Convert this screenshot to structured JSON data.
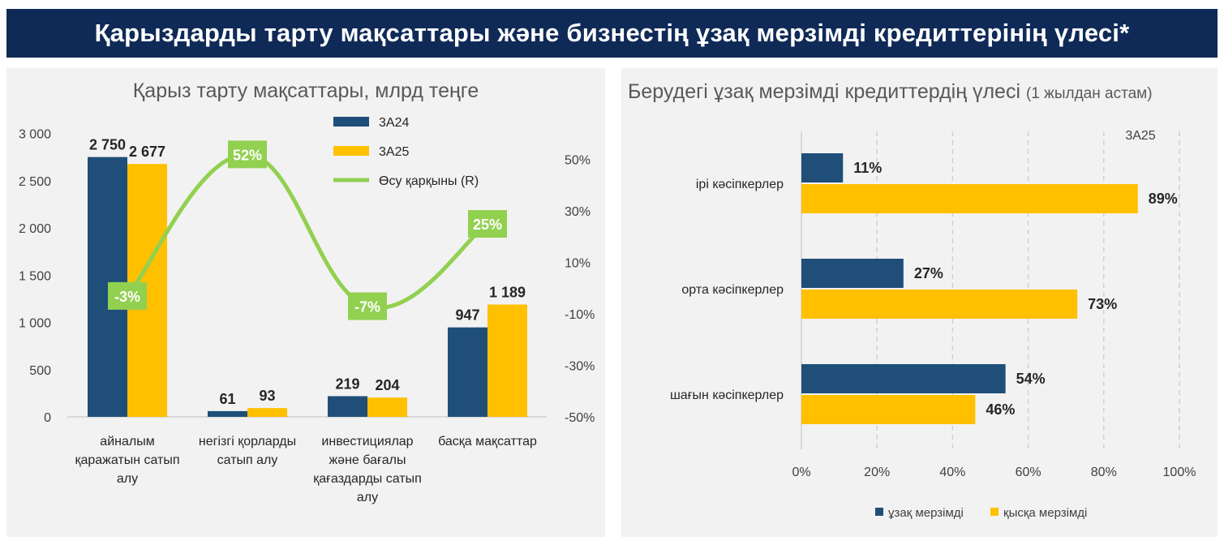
{
  "header": {
    "title": "Қарыздарды тарту мақсаттары және бизнестің ұзақ мерзімді кредиттерінің үлесі*"
  },
  "colors": {
    "navy": "#1f4e79",
    "gold": "#ffc000",
    "green": "#92d050",
    "header_bg": "#0f2a57"
  },
  "chart_data": [
    {
      "type": "bar",
      "title": "Қарыз тарту мақсаттары, млрд теңге",
      "categories": [
        [
          "айналым",
          "қаражатын сатып",
          "алу"
        ],
        [
          "негізгі қорларды",
          "сатып алу"
        ],
        [
          "инвестициялар",
          "және бағалы",
          "қағаздарды сатып",
          "алу"
        ],
        [
          "басқа мақсаттар"
        ]
      ],
      "series": [
        {
          "name": "3А24",
          "values": [
            2750,
            61,
            219,
            947
          ],
          "labels": [
            "2 750",
            "61",
            "219",
            "947"
          ],
          "color": "#1f4e79"
        },
        {
          "name": "3А25",
          "values": [
            2677,
            93,
            204,
            1189
          ],
          "labels": [
            "2 677",
            "93",
            "204",
            "1 189"
          ],
          "color": "#ffc000"
        }
      ],
      "line_series": {
        "name": "Өсу қарқыны (R)",
        "values": [
          -3,
          52,
          -7,
          25
        ],
        "labels": [
          "-3%",
          "52%",
          "-7%",
          "25%"
        ],
        "color": "#92d050",
        "axis": "right"
      },
      "ylim": [
        0,
        3000
      ],
      "yticks": [
        "0",
        "500",
        "1 000",
        "1 500",
        "2 000",
        "2 500",
        "3 000"
      ],
      "y2lim": [
        -50,
        60
      ],
      "y2ticks": [
        "-50%",
        "-30%",
        "-10%",
        "10%",
        "30%",
        "50%"
      ],
      "legend_position": "top-right"
    },
    {
      "type": "bar",
      "orientation": "horizontal",
      "title": "Берудегі ұзақ мерзімді кредиттердің үлесі",
      "subtitle": "(1 жылдан астам)",
      "annotation": "3А25",
      "categories": [
        "ірі кәсіпкерлер",
        "орта кәсіпкерлер",
        "шағын кәсіпкерлер"
      ],
      "series": [
        {
          "name": "ұзақ мерзімді",
          "values": [
            11,
            27,
            54
          ],
          "labels": [
            "11%",
            "27%",
            "54%"
          ],
          "color": "#1f4e79"
        },
        {
          "name": "қысқа мерзімді",
          "values": [
            89,
            73,
            46
          ],
          "labels": [
            "89%",
            "73%",
            "46%"
          ],
          "color": "#ffc000"
        }
      ],
      "xlim": [
        0,
        100
      ],
      "xticks": [
        "0%",
        "20%",
        "40%",
        "60%",
        "80%",
        "100%"
      ],
      "grid": true,
      "legend_position": "bottom"
    }
  ]
}
